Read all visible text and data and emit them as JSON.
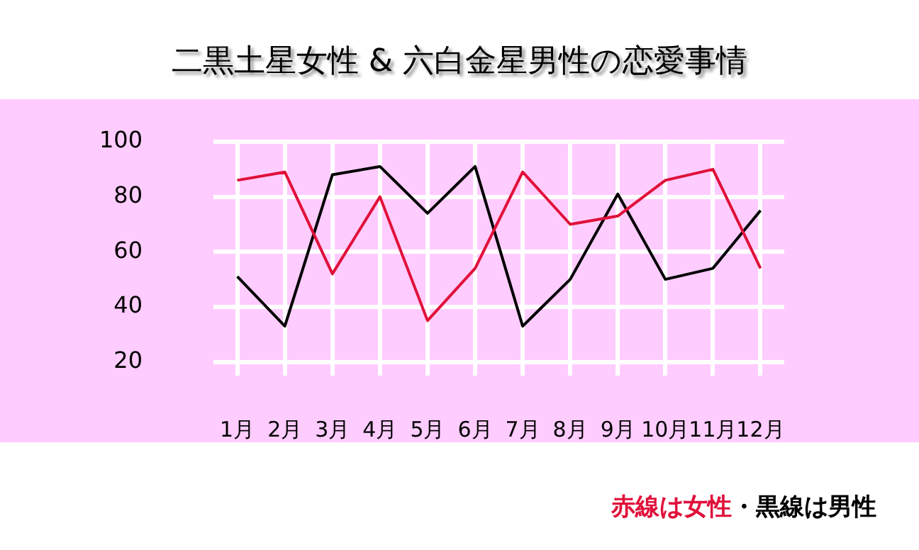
{
  "chart_data": {
    "type": "line",
    "title": "二黒土星女性 & 六白金星男性の恋愛事情",
    "categories": [
      "1月",
      "2月",
      "3月",
      "4月",
      "5月",
      "6月",
      "7月",
      "8月",
      "9月",
      "10月",
      "11月",
      "12月"
    ],
    "series": [
      {
        "color": "#e0103a",
        "values": [
          86,
          89,
          52,
          80,
          35,
          54,
          89,
          70,
          73,
          86,
          90,
          54
        ]
      },
      {
        "color": "#000000",
        "values": [
          51,
          33,
          88,
          91,
          74,
          91,
          33,
          50,
          81,
          50,
          54,
          75
        ]
      }
    ],
    "ylim": [
      15,
      100
    ],
    "yticks": [
      20,
      40,
      60,
      80,
      100
    ],
    "grid": true,
    "marker": "none",
    "line_style": "solid",
    "annotations": [
      "赤線は女性",
      "・黒線は男性"
    ]
  }
}
